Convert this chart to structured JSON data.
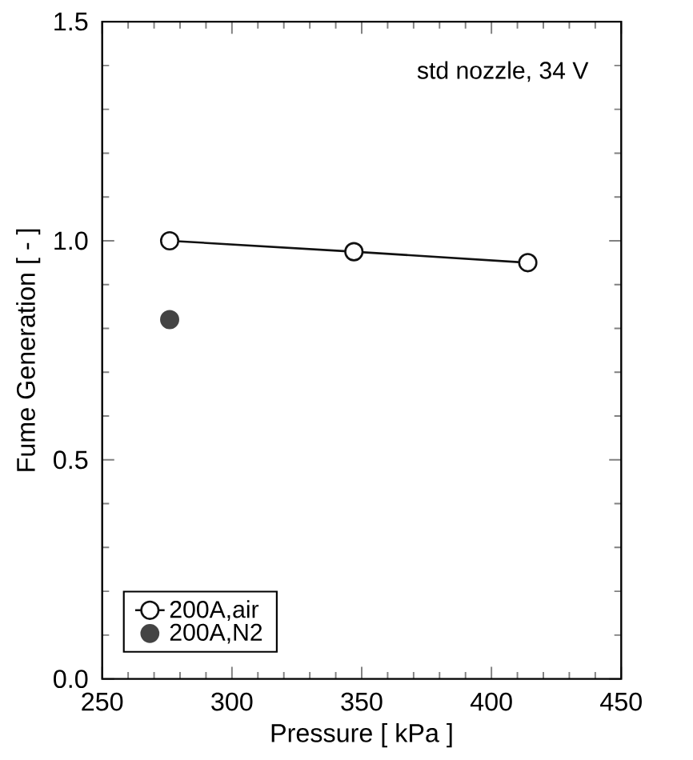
{
  "chart_data": {
    "type": "line",
    "xlabel": "Pressure  [ kPa ]",
    "ylabel": "Fume Generation  [ - ]",
    "annotations": [
      "std nozzle, 34 V"
    ],
    "xlim": [
      250,
      450
    ],
    "xticks": [
      250,
      300,
      350,
      400,
      450
    ],
    "ylim": [
      0,
      1.5
    ],
    "yticks": [
      {
        "value": 0,
        "label": "0.0"
      },
      {
        "value": 0.5,
        "label": "0.5"
      },
      {
        "value": 1.0,
        "label": "1.0"
      },
      {
        "value": 1.5,
        "label": "1.5"
      }
    ],
    "grid": false,
    "legend": "bottom left",
    "marker": "circle",
    "series": [
      {
        "name": "200A,air",
        "color": "#111111",
        "x": [
          276,
          347,
          414
        ],
        "values": [
          1.0,
          0.975,
          0.95
        ]
      },
      {
        "name": "200A,N2",
        "type": "scatter",
        "color": "#444444",
        "x": [
          276
        ],
        "values": [
          0.82
        ]
      }
    ]
  }
}
